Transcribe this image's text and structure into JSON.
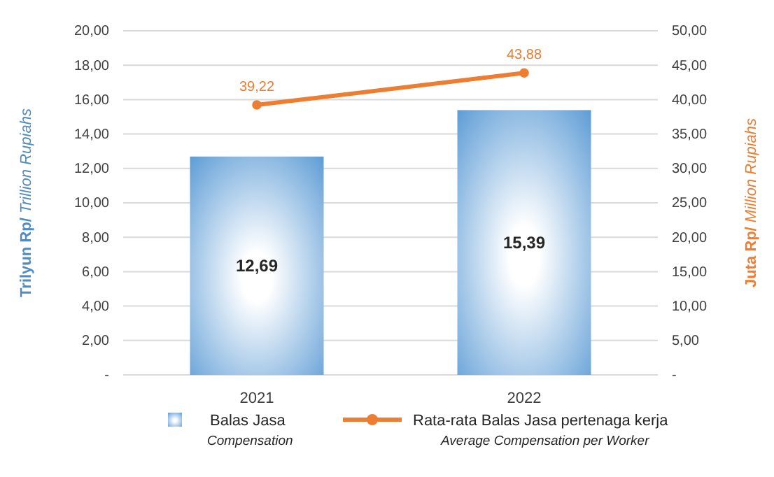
{
  "chart_data": {
    "type": "bar",
    "categories": [
      "2021",
      "2022"
    ],
    "ylabel": "Trilyun Rp/ Trillion Rupiahs",
    "y2label": "Juta Rp/ Million Rupiahs",
    "ylim": [
      0,
      20
    ],
    "yticks": [
      {
        "value": 0,
        "label": "-"
      },
      {
        "value": 2,
        "label": "2,00"
      },
      {
        "value": 4,
        "label": "4,00"
      },
      {
        "value": 6,
        "label": "6,00"
      },
      {
        "value": 8,
        "label": "8,00"
      },
      {
        "value": 10,
        "label": "10,00"
      },
      {
        "value": 12,
        "label": "12,00"
      },
      {
        "value": 14,
        "label": "14,00"
      },
      {
        "value": 16,
        "label": "16,00"
      },
      {
        "value": 18,
        "label": "18,00"
      },
      {
        "value": 20,
        "label": "20,00"
      }
    ],
    "y2lim": [
      0,
      50
    ],
    "y2ticks": [
      {
        "value": 0,
        "label": "-"
      },
      {
        "value": 5,
        "label": "5,00"
      },
      {
        "value": 10,
        "label": "10,00"
      },
      {
        "value": 15,
        "label": "15,00"
      },
      {
        "value": 20,
        "label": "20,00"
      },
      {
        "value": 25,
        "label": "25,00"
      },
      {
        "value": 30,
        "label": "30,00"
      },
      {
        "value": 35,
        "label": "35,00"
      },
      {
        "value": 40,
        "label": "40,00"
      },
      {
        "value": 45,
        "label": "45,00"
      },
      {
        "value": 50,
        "label": "50,00"
      }
    ],
    "grid": "y",
    "legend": "bottom",
    "marker": "circle",
    "series": [
      {
        "name": "Balas Jasa\nCompensation",
        "color": "#5b9bd5",
        "values": [
          12.69,
          15.39
        ],
        "value_labels": [
          "12,69",
          "15,39"
        ]
      },
      {
        "name": "Rata-rata Balas Jasa pertenaga kerja\nAverage Compensation per Worker",
        "type": "line",
        "axis": "y2",
        "color": "#ed7d31",
        "values": [
          39.22,
          43.88
        ],
        "value_labels": [
          "39,22",
          "43,88"
        ]
      }
    ]
  }
}
